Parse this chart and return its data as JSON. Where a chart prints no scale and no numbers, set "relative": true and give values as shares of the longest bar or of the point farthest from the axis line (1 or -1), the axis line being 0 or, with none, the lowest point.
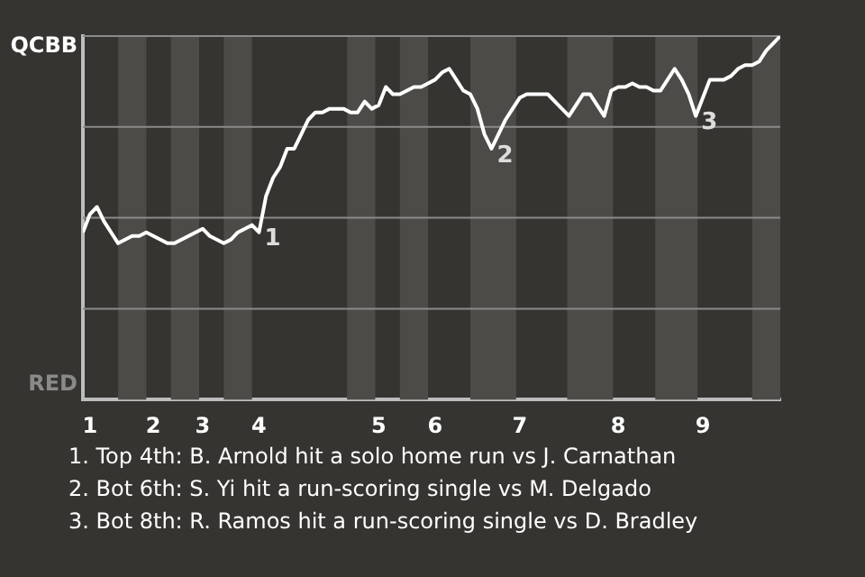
{
  "chart_data": {
    "type": "line",
    "relative": true,
    "categories": [
      null,
      "1",
      null,
      null,
      null,
      null,
      null,
      null,
      null,
      null,
      "2",
      null,
      null,
      null,
      null,
      null,
      null,
      "3",
      null,
      null,
      null,
      null,
      null,
      null,
      null,
      "4",
      null,
      null,
      null,
      null,
      null,
      null,
      null,
      null,
      null,
      null,
      null,
      null,
      null,
      null,
      null,
      null,
      "5",
      null,
      null,
      null,
      null,
      null,
      null,
      null,
      "6",
      null,
      null,
      null,
      null,
      null,
      null,
      null,
      null,
      null,
      null,
      null,
      "7",
      null,
      null,
      null,
      null,
      null,
      null,
      null,
      null,
      null,
      null,
      null,
      null,
      null,
      "8",
      null,
      null,
      null,
      null,
      null,
      null,
      null,
      null,
      null,
      null,
      null,
      "9",
      null,
      null,
      null,
      null,
      null,
      null,
      null,
      null,
      null,
      null,
      null
    ],
    "series": [
      {
        "color": "#ffffff",
        "values": [
          0.46,
          0.51,
          0.53,
          0.49,
          0.46,
          0.43,
          0.44,
          0.45,
          0.45,
          0.46,
          0.45,
          0.44,
          0.43,
          0.43,
          0.44,
          0.45,
          0.46,
          0.47,
          0.45,
          0.44,
          0.43,
          0.44,
          0.46,
          0.47,
          0.48,
          0.46,
          0.56,
          0.61,
          0.64,
          0.69,
          0.69,
          0.73,
          0.77,
          0.79,
          0.79,
          0.8,
          0.8,
          0.8,
          0.79,
          0.79,
          0.82,
          0.8,
          0.81,
          0.86,
          0.84,
          0.84,
          0.85,
          0.86,
          0.86,
          0.87,
          0.88,
          0.9,
          0.91,
          0.88,
          0.85,
          0.84,
          0.8,
          0.73,
          0.69,
          0.73,
          0.77,
          0.8,
          0.83,
          0.84,
          0.84,
          0.84,
          0.84,
          0.82,
          0.8,
          0.78,
          0.81,
          0.84,
          0.84,
          0.81,
          0.78,
          0.85,
          0.86,
          0.86,
          0.87,
          0.86,
          0.86,
          0.85,
          0.85,
          0.88,
          0.91,
          0.88,
          0.84,
          0.78,
          0.83,
          0.88,
          0.88,
          0.88,
          0.89,
          0.91,
          0.92,
          0.92,
          0.93,
          0.96,
          0.98,
          1.0
        ]
      }
    ],
    "marker": "none",
    "legend": false,
    "ref_lines": [
      {
        "axis": "y",
        "value": 0.25,
        "color": "#8a8a8a"
      },
      {
        "axis": "y",
        "value": 0.5,
        "color": "#8a8a8a"
      },
      {
        "axis": "y",
        "value": 0.75,
        "color": "#8a8a8a"
      },
      {
        "axis": "y",
        "value": 1,
        "color": "#8a8a8a"
      }
    ],
    "annotations": [
      "QCBB",
      "RED",
      "1",
      "2",
      "3",
      "1. Top 4th: B. Arnold hit a solo home run vs J. Carnathan",
      "2. Bot 6th: S. Yi hit a run-scoring single vs M. Delgado",
      "3. Bot 8th: R. Ramos hit a run-scoring single vs D. Bradley"
    ]
  }
}
